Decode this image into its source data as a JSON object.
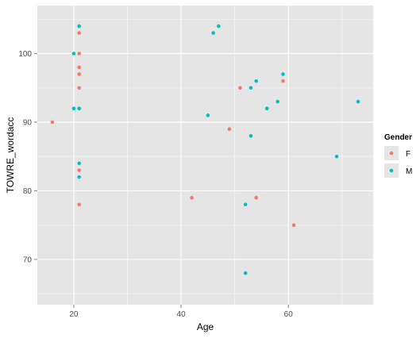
{
  "chart_data": {
    "type": "scatter",
    "title": "",
    "xlabel": "Age",
    "ylabel": "TOWRE_wordacc",
    "xlim": [
      13.2,
      75.8
    ],
    "ylim": [
      63.4,
      107.0
    ],
    "x_ticks": [
      20,
      40,
      60
    ],
    "y_ticks": [
      70,
      80,
      90,
      100
    ],
    "grid": true,
    "legend": {
      "title": "Gender",
      "position": "right",
      "entries": [
        "F",
        "M"
      ]
    },
    "colors": {
      "F": "#F8766D",
      "M": "#00BFC4",
      "panel": "#E5E5E5",
      "grid": "#FFFFFF"
    },
    "series": [
      {
        "name": "F",
        "points": [
          [
            16,
            90
          ],
          [
            21,
            103
          ],
          [
            21,
            100
          ],
          [
            21,
            98
          ],
          [
            21,
            97
          ],
          [
            21,
            95
          ],
          [
            21,
            83
          ],
          [
            21,
            78
          ],
          [
            21,
            92
          ],
          [
            42,
            79
          ],
          [
            49,
            89
          ],
          [
            51,
            95
          ],
          [
            54,
            79
          ],
          [
            59,
            96
          ],
          [
            61,
            75
          ]
        ]
      },
      {
        "name": "M",
        "points": [
          [
            21,
            104
          ],
          [
            20,
            100
          ],
          [
            20,
            92
          ],
          [
            21,
            92
          ],
          [
            21,
            84
          ],
          [
            21,
            82
          ],
          [
            45,
            91
          ],
          [
            46,
            103
          ],
          [
            47,
            104
          ],
          [
            52,
            78
          ],
          [
            52,
            68
          ],
          [
            53,
            95
          ],
          [
            53,
            88
          ],
          [
            54,
            96
          ],
          [
            56,
            92
          ],
          [
            58,
            93
          ],
          [
            59,
            97
          ],
          [
            69,
            85
          ],
          [
            73,
            93
          ]
        ]
      }
    ]
  }
}
